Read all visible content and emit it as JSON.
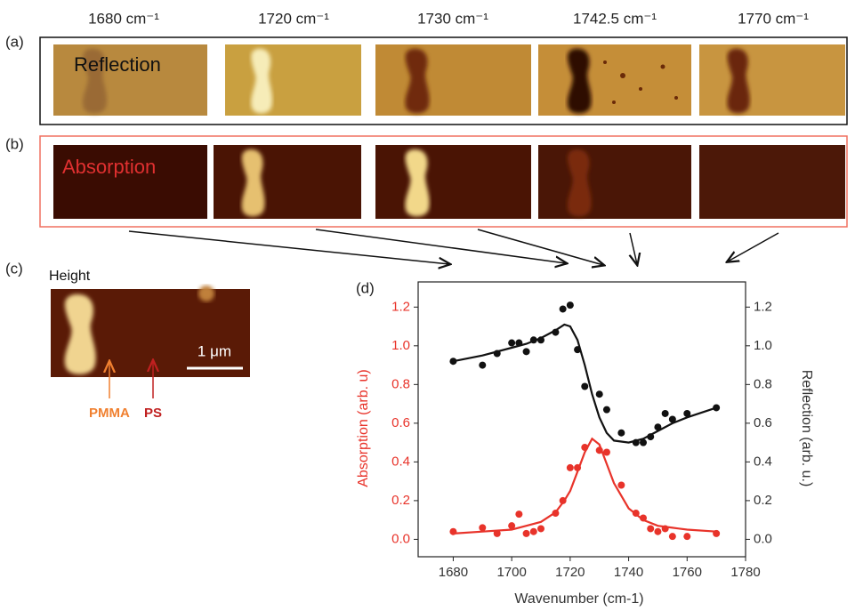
{
  "figure": {
    "panels": {
      "a": "(a)",
      "b": "(b)",
      "c": "(c)",
      "d": "(d)"
    },
    "headers": [
      "1680 cm⁻¹",
      "1720 cm⁻¹",
      "1730 cm⁻¹",
      "1742.5 cm⁻¹",
      "1770 cm⁻¹"
    ],
    "reflection_label": "Reflection",
    "absorption_label": "Absorption",
    "height_label": "Height",
    "scale_bar": "1 μm",
    "pmma": "PMMA",
    "ps": "PS"
  },
  "chart_data": {
    "type": "scatter",
    "xlabel": "Wavenumber (cm-1)",
    "ylabel": "Absorption (arb. u)",
    "y2label": "Reflection (arb. u.)",
    "xlim": [
      1668,
      1780
    ],
    "ylim": [
      -0.09,
      1.33
    ],
    "y2lim": [
      -0.09,
      1.33
    ],
    "xticks": [
      1680,
      1700,
      1720,
      1740,
      1760,
      1780
    ],
    "yticks": [
      {
        "value": 0,
        "label": "0.0"
      },
      {
        "value": 0.2,
        "label": "0.2"
      },
      {
        "value": 0.4,
        "label": "0.4"
      },
      {
        "value": 0.6,
        "label": "0.6"
      },
      {
        "value": 0.8,
        "label": "0.8"
      },
      {
        "value": 1,
        "label": "1.0"
      },
      {
        "value": 1.2,
        "label": "1.2"
      }
    ],
    "y2ticks": [
      {
        "value": 0,
        "label": "0.0"
      },
      {
        "value": 0.2,
        "label": "0.2"
      },
      {
        "value": 0.4,
        "label": "0.4"
      },
      {
        "value": 0.6,
        "label": "0.6"
      },
      {
        "value": 0.8,
        "label": "0.8"
      },
      {
        "value": 1,
        "label": "1.0"
      },
      {
        "value": 1.2,
        "label": "1.2"
      }
    ],
    "x": [
      1680,
      1690,
      1695,
      1700,
      1702.5,
      1705,
      1707.5,
      1710,
      1715,
      1717.5,
      1720,
      1722.5,
      1725,
      1730,
      1732.5,
      1737.5,
      1742.5,
      1745,
      1747.5,
      1750,
      1752.5,
      1755,
      1760,
      1770
    ],
    "series": [
      {
        "color": "#e8332a",
        "values": [
          0.04,
          0.06,
          0.03,
          0.07,
          0.13,
          0.03,
          0.04,
          0.055,
          0.135,
          0.2,
          0.37,
          0.37,
          0.475,
          0.46,
          0.45,
          0.28,
          0.135,
          0.11,
          0.055,
          0.04,
          0.055,
          0.015,
          0.015,
          0.03
        ]
      },
      {
        "color": "#111111",
        "axis": "y2",
        "values": [
          0.92,
          0.9,
          0.96,
          1.015,
          1.015,
          0.97,
          1.03,
          1.03,
          1.07,
          1.19,
          1.21,
          0.98,
          0.79,
          0.75,
          0.67,
          0.55,
          0.5,
          0.5,
          0.53,
          0.58,
          0.65,
          0.62,
          0.65,
          0.68
        ]
      }
    ],
    "fits": {
      "x": [
        1680,
        1690,
        1700,
        1705,
        1710,
        1715,
        1718,
        1720,
        1722.5,
        1725,
        1727.5,
        1730,
        1732.5,
        1735,
        1740,
        1745,
        1750,
        1755,
        1760,
        1770
      ],
      "series": [
        {
          "color": "#e8332a",
          "values": [
            0.03,
            0.04,
            0.05,
            0.07,
            0.09,
            0.14,
            0.2,
            0.25,
            0.35,
            0.45,
            0.52,
            0.49,
            0.39,
            0.29,
            0.16,
            0.1,
            0.07,
            0.06,
            0.05,
            0.04
          ]
        },
        {
          "color": "#111111",
          "axis": "y2",
          "values": [
            0.92,
            0.95,
            0.99,
            1.01,
            1.04,
            1.08,
            1.11,
            1.1,
            1.03,
            0.9,
            0.75,
            0.63,
            0.55,
            0.51,
            0.5,
            0.52,
            0.56,
            0.6,
            0.63,
            0.68
          ]
        }
      ]
    }
  }
}
